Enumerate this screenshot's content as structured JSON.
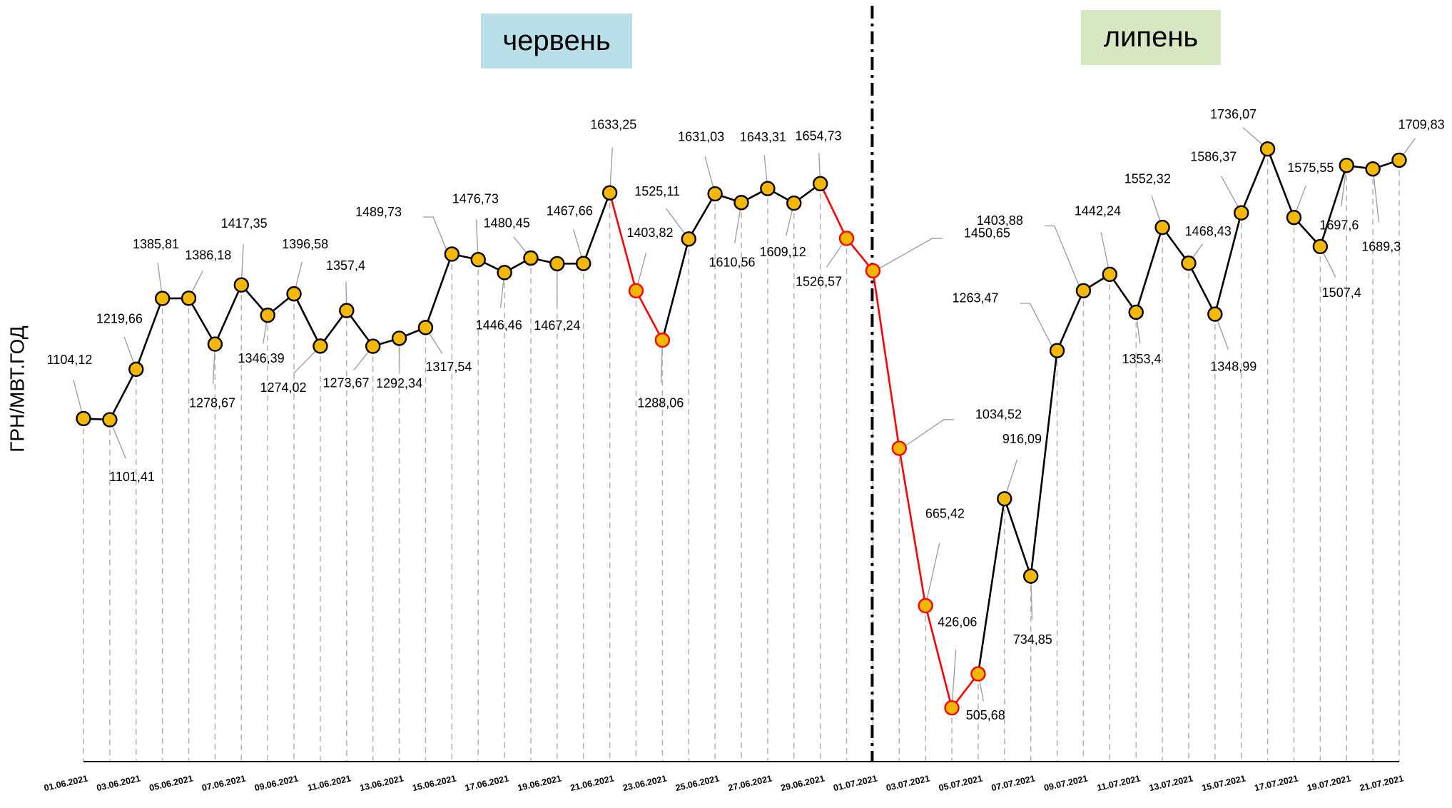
{
  "chart_data": {
    "type": "line",
    "y_label": "ГРН/МВТ.ГОД",
    "annotations": [
      {
        "text": "червень",
        "color": "#b9dfe9"
      },
      {
        "text": "липень",
        "color": "#d6e7c2"
      }
    ],
    "categories": [
      "01.06.2021",
      null,
      "03.06.2021",
      null,
      "05.06.2021",
      null,
      "07.06.2021",
      null,
      "09.06.2021",
      null,
      "11.06.2021",
      null,
      "13.06.2021",
      null,
      "15.06.2021",
      null,
      "17.06.2021",
      null,
      "19.06.2021",
      null,
      "21.06.2021",
      null,
      "23.06.2021",
      null,
      "25.06.2021",
      null,
      "27.06.2021",
      null,
      "29.06.2021",
      null,
      "01.07.2021",
      null,
      "03.07.2021",
      null,
      "05.07.2021",
      null,
      "07.07.2021",
      null,
      "09.07.2021",
      null,
      "11.07.2021",
      null,
      "13.07.2021",
      null,
      "15.07.2021",
      null,
      "17.07.2021",
      null,
      "19.07.2021",
      null,
      "21.07.2021"
    ],
    "values": [
      1104.12,
      1101.41,
      1219.66,
      1385.81,
      1386.18,
      1278.67,
      1417.35,
      1346.39,
      1396.58,
      1274.02,
      1357.4,
      1273.67,
      1292.34,
      1317.54,
      1489.73,
      1476.73,
      1446.46,
      1480.45,
      1467.24,
      1467.66,
      1633.25,
      1403.82,
      1288.06,
      1525.11,
      1631.03,
      1610.56,
      1643.31,
      1609.12,
      1654.73,
      1526.57,
      1450.65,
      1034.52,
      665.42,
      426.06,
      505.68,
      916.09,
      734.85,
      1263.47,
      1403.88,
      1442.24,
      1353.4,
      1552.32,
      1468.43,
      1348.99,
      1586.37,
      1736.07,
      1575.55,
      1507.4,
      1697.6,
      1689.3,
      1709.83
    ],
    "value_labels": [
      "1104,12",
      "1101,41",
      "1219,66",
      "1385,81",
      "1386,18",
      "1278,67",
      "1417,35",
      "1346,39",
      "1396,58",
      "1274,02",
      "1357,4",
      "1273,67",
      "1292,34",
      "1317,54",
      "1489,73",
      "1476,73",
      "1446,46",
      "1480,45",
      "1467,24",
      "1467,66",
      "1633,25",
      "1403,82",
      "1288,06",
      "1525,11",
      "1631,03",
      "1610,56",
      "1643,31",
      "1609,12",
      "1654,73",
      "1526,57",
      "1450,65",
      "1034,52",
      "665,42",
      "426,06",
      "505,68",
      "916,09",
      "734,85",
      "1263,47",
      "1403,88",
      "1442,24",
      "1353,4",
      "1552,32",
      "1468,43",
      "1348,99",
      "1586,37",
      "1736,07",
      "1575,55",
      "1507,4",
      "1697,6",
      "1689,3",
      "1709,83"
    ],
    "color": "#000000",
    "marker_color": "#f5b800",
    "marker_edge_colors": [
      "#000000",
      "#000000",
      "#000000",
      "#000000",
      "#000000",
      "#000000",
      "#000000",
      "#000000",
      "#000000",
      "#000000",
      "#000000",
      "#000000",
      "#000000",
      "#000000",
      "#000000",
      "#000000",
      "#000000",
      "#000000",
      "#000000",
      "#000000",
      "#000000",
      "#ff0000",
      "#ff0000",
      "#000000",
      "#000000",
      "#000000",
      "#000000",
      "#000000",
      "#000000",
      "#ff0000",
      "#ff0000",
      "#ff0000",
      "#ff0000",
      "#ff0000",
      "#ff0000",
      "#000000",
      "#000000",
      "#000000",
      "#000000",
      "#000000",
      "#000000",
      "#000000",
      "#000000",
      "#000000",
      "#000000",
      "#000000",
      "#000000",
      "#000000",
      "#000000",
      "#000000",
      "#000000"
    ],
    "ylim": [
      300,
      2000
    ]
  }
}
